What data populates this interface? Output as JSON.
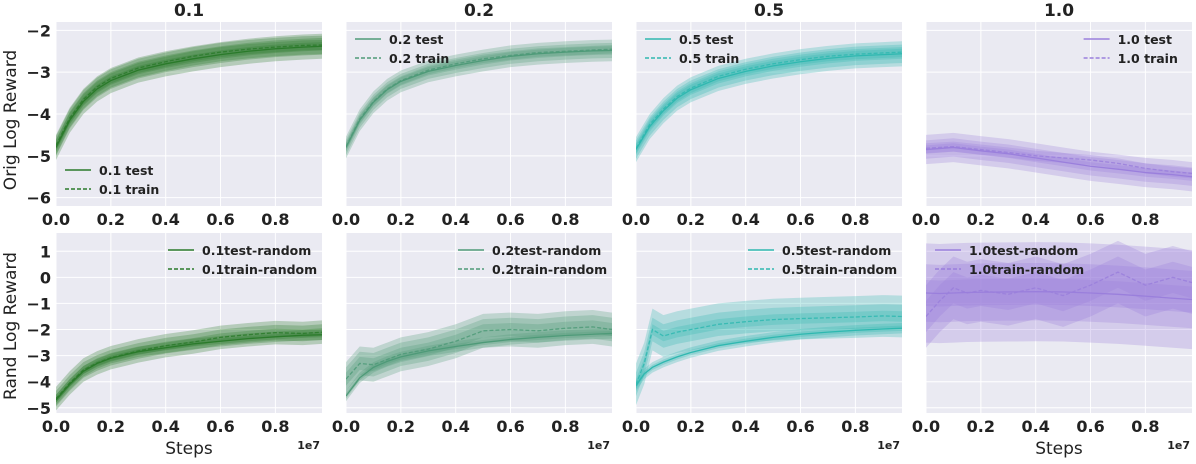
{
  "figure": {
    "column_titles": [
      "0.1",
      "0.2",
      "0.5",
      "1.0"
    ],
    "row_labels": [
      "Orig Log Reward",
      "Rand Log Reward"
    ],
    "xlabel": "Steps",
    "x_offset_label": "1e7",
    "colors": {
      "c01": "#2a7a2a",
      "c02": "#4e9a78",
      "c05": "#2fb8b0",
      "c10": "#9a7fdc",
      "panel_bg": "#eaeaf2",
      "grid": "#ffffff"
    }
  },
  "chart_data": [
    {
      "type": "line",
      "row": 0,
      "col": 0,
      "title": "0.1",
      "color_key": "c01",
      "xlim": [
        0,
        0.97
      ],
      "ylim": [
        -6.2,
        -1.8
      ],
      "xticks": [
        0.0,
        0.2,
        0.4,
        0.6,
        0.8
      ],
      "xtick_labels": [
        "0.0",
        "0.2",
        "0.4",
        "0.6",
        "0.8"
      ],
      "yticks": [
        -6,
        -5,
        -4,
        -3,
        -2
      ],
      "ytick_labels": [
        "−6",
        "−5",
        "−4",
        "−3",
        "−2"
      ],
      "ylabel": "Orig Log Reward",
      "xlabel": "",
      "legend": {
        "position": "lower-left",
        "entries": [
          "0.1 test",
          "0.1 train"
        ]
      },
      "x": [
        0.0,
        0.05,
        0.1,
        0.15,
        0.2,
        0.3,
        0.4,
        0.5,
        0.6,
        0.7,
        0.8,
        0.9,
        0.97
      ],
      "series": [
        {
          "name": "0.1 test",
          "style": "solid",
          "values": [
            -4.8,
            -4.15,
            -3.7,
            -3.4,
            -3.2,
            -2.95,
            -2.8,
            -2.68,
            -2.58,
            -2.5,
            -2.44,
            -2.4,
            -2.38
          ],
          "bands": [
            0.1,
            0.2,
            0.3
          ]
        },
        {
          "name": "0.1 train",
          "style": "dashed",
          "values": [
            -4.75,
            -4.1,
            -3.65,
            -3.35,
            -3.15,
            -2.9,
            -2.75,
            -2.62,
            -2.52,
            -2.45,
            -2.4,
            -2.36,
            -2.35
          ],
          "bands": [
            0.12,
            0.22
          ]
        }
      ]
    },
    {
      "type": "line",
      "row": 0,
      "col": 1,
      "title": "0.2",
      "color_key": "c02",
      "xlim": [
        0,
        0.97
      ],
      "ylim": [
        -6.2,
        -1.8
      ],
      "xticks": [
        0.0,
        0.2,
        0.4,
        0.6,
        0.8
      ],
      "xtick_labels": [
        "0.0",
        "0.2",
        "0.4",
        "0.6",
        "0.8"
      ],
      "yticks": [
        -6,
        -5,
        -4,
        -3,
        -2
      ],
      "ytick_labels": [],
      "ylabel": "",
      "xlabel": "",
      "legend": {
        "position": "upper-left",
        "entries": [
          "0.2 test",
          "0.2 train"
        ]
      },
      "x": [
        0.0,
        0.05,
        0.1,
        0.15,
        0.2,
        0.3,
        0.4,
        0.5,
        0.6,
        0.7,
        0.8,
        0.9,
        0.97
      ],
      "series": [
        {
          "name": "0.2 test",
          "style": "solid",
          "values": [
            -4.8,
            -4.15,
            -3.72,
            -3.42,
            -3.22,
            -2.98,
            -2.84,
            -2.72,
            -2.62,
            -2.56,
            -2.52,
            -2.49,
            -2.48
          ],
          "bands": [
            0.1,
            0.18,
            0.26
          ]
        },
        {
          "name": "0.2 train",
          "style": "dashed",
          "values": [
            -4.78,
            -4.12,
            -3.7,
            -3.4,
            -3.2,
            -2.95,
            -2.8,
            -2.68,
            -2.6,
            -2.53,
            -2.5,
            -2.47,
            -2.45
          ],
          "bands": [
            0.1
          ]
        }
      ]
    },
    {
      "type": "line",
      "row": 0,
      "col": 2,
      "title": "0.5",
      "color_key": "c05",
      "xlim": [
        0,
        0.97
      ],
      "ylim": [
        -6.2,
        -1.8
      ],
      "xticks": [
        0.0,
        0.2,
        0.4,
        0.6,
        0.8
      ],
      "xtick_labels": [
        "0.0",
        "0.2",
        "0.4",
        "0.6",
        "0.8"
      ],
      "yticks": [
        -6,
        -5,
        -4,
        -3,
        -2
      ],
      "ytick_labels": [],
      "ylabel": "",
      "xlabel": "",
      "legend": {
        "position": "upper-left",
        "entries": [
          "0.5 test",
          "0.5 train"
        ]
      },
      "x": [
        0.0,
        0.05,
        0.1,
        0.15,
        0.2,
        0.3,
        0.4,
        0.5,
        0.6,
        0.7,
        0.8,
        0.9,
        0.97
      ],
      "series": [
        {
          "name": "0.5 test",
          "style": "solid",
          "values": [
            -4.85,
            -4.3,
            -3.92,
            -3.62,
            -3.42,
            -3.15,
            -2.98,
            -2.85,
            -2.75,
            -2.67,
            -2.61,
            -2.58,
            -2.56
          ],
          "bands": [
            0.12,
            0.22,
            0.3
          ]
        },
        {
          "name": "0.5 train",
          "style": "dashed",
          "values": [
            -4.82,
            -4.25,
            -3.88,
            -3.58,
            -3.38,
            -3.1,
            -2.93,
            -2.8,
            -2.7,
            -2.62,
            -2.57,
            -2.54,
            -2.52
          ],
          "bands": [
            0.12
          ]
        }
      ]
    },
    {
      "type": "line",
      "row": 0,
      "col": 3,
      "title": "1.0",
      "color_key": "c10",
      "xlim": [
        0,
        0.97
      ],
      "ylim": [
        -6.2,
        -1.8
      ],
      "xticks": [
        0.0,
        0.2,
        0.4,
        0.6,
        0.8
      ],
      "xtick_labels": [
        "0.0",
        "0.2",
        "0.4",
        "0.6",
        "0.8"
      ],
      "yticks": [
        -6,
        -5,
        -4,
        -3,
        -2
      ],
      "ytick_labels": [],
      "ylabel": "",
      "xlabel": "",
      "legend": {
        "position": "upper-right",
        "entries": [
          "1.0 test",
          "1.0 train"
        ]
      },
      "x": [
        0.0,
        0.1,
        0.2,
        0.3,
        0.4,
        0.5,
        0.6,
        0.7,
        0.8,
        0.9,
        0.97
      ],
      "series": [
        {
          "name": "1.0 test",
          "style": "solid",
          "values": [
            -4.85,
            -4.8,
            -4.88,
            -4.95,
            -5.05,
            -5.15,
            -5.25,
            -5.32,
            -5.4,
            -5.45,
            -5.5
          ],
          "bands": [
            0.1,
            0.22,
            0.35
          ]
        },
        {
          "name": "1.0 train",
          "style": "dashed",
          "values": [
            -4.82,
            -4.78,
            -4.85,
            -4.92,
            -5.0,
            -5.05,
            -5.1,
            -5.18,
            -5.3,
            -5.38,
            -5.42
          ],
          "bands": [
            0.12
          ]
        }
      ]
    },
    {
      "type": "line",
      "row": 1,
      "col": 0,
      "title": "",
      "color_key": "c01",
      "xlim": [
        0,
        0.97
      ],
      "ylim": [
        -5.2,
        1.7
      ],
      "xticks": [
        0.0,
        0.2,
        0.4,
        0.6,
        0.8
      ],
      "xtick_labels": [
        "0.0",
        "0.2",
        "0.4",
        "0.6",
        "0.8"
      ],
      "yticks": [
        -5,
        -4,
        -3,
        -2,
        -1,
        0,
        1
      ],
      "ytick_labels": [
        "−5",
        "−4",
        "−3",
        "−2",
        "−1",
        "0",
        "1"
      ],
      "ylabel": "Rand Log Reward",
      "xlabel": "Steps",
      "x_offset": "1e7",
      "legend": {
        "position": "upper-right",
        "entries": [
          "0.1test-random",
          "0.1train-random"
        ]
      },
      "x": [
        0.0,
        0.05,
        0.1,
        0.15,
        0.2,
        0.3,
        0.4,
        0.5,
        0.6,
        0.7,
        0.8,
        0.9,
        0.97
      ],
      "series": [
        {
          "name": "0.1test-random",
          "style": "solid",
          "values": [
            -4.7,
            -4.1,
            -3.6,
            -3.3,
            -3.1,
            -2.85,
            -2.7,
            -2.55,
            -2.45,
            -2.35,
            -2.28,
            -2.22,
            -2.2
          ],
          "bands": [
            0.1,
            0.2
          ]
        },
        {
          "name": "0.1train-random",
          "style": "dashed",
          "values": [
            -4.65,
            -4.05,
            -3.55,
            -3.28,
            -3.08,
            -2.82,
            -2.62,
            -2.48,
            -2.3,
            -2.2,
            -2.12,
            -2.15,
            -2.1
          ],
          "bands": [
            0.15,
            0.3,
            0.45
          ]
        }
      ]
    },
    {
      "type": "line",
      "row": 1,
      "col": 1,
      "title": "",
      "color_key": "c02",
      "xlim": [
        0,
        0.97
      ],
      "ylim": [
        -5.2,
        1.7
      ],
      "xticks": [
        0.0,
        0.2,
        0.4,
        0.6,
        0.8
      ],
      "xtick_labels": [
        "0.0",
        "0.2",
        "0.4",
        "0.6",
        "0.8"
      ],
      "yticks": [
        -5,
        -4,
        -3,
        -2,
        -1,
        0,
        1
      ],
      "ytick_labels": [],
      "ylabel": "",
      "xlabel": "",
      "x_offset": "1e7",
      "legend": {
        "position": "upper-right",
        "entries": [
          "0.2test-random",
          "0.2train-random"
        ]
      },
      "x": [
        0.0,
        0.05,
        0.1,
        0.15,
        0.2,
        0.3,
        0.4,
        0.5,
        0.6,
        0.7,
        0.8,
        0.9,
        0.97
      ],
      "series": [
        {
          "name": "0.2test-random",
          "style": "solid",
          "values": [
            -4.55,
            -3.85,
            -3.45,
            -3.22,
            -3.05,
            -2.82,
            -2.65,
            -2.5,
            -2.38,
            -2.3,
            -2.23,
            -2.18,
            -2.15
          ],
          "bands": [
            0.1,
            0.2
          ]
        },
        {
          "name": "0.2train-random",
          "style": "dashed",
          "values": [
            -3.9,
            -3.3,
            -3.35,
            -3.15,
            -2.95,
            -2.75,
            -2.45,
            -2.05,
            -2.0,
            -2.05,
            -1.95,
            -1.9,
            -2.0
          ],
          "bands": [
            0.25,
            0.45,
            0.65
          ]
        }
      ]
    },
    {
      "type": "line",
      "row": 1,
      "col": 2,
      "title": "",
      "color_key": "c05",
      "xlim": [
        0,
        0.97
      ],
      "ylim": [
        -5.2,
        1.7
      ],
      "xticks": [
        0.0,
        0.2,
        0.4,
        0.6,
        0.8
      ],
      "xtick_labels": [
        "0.0",
        "0.2",
        "0.4",
        "0.6",
        "0.8"
      ],
      "yticks": [
        -5,
        -4,
        -3,
        -2,
        -1,
        0,
        1
      ],
      "ytick_labels": [],
      "ylabel": "",
      "xlabel": "",
      "x_offset": "1e7",
      "legend": {
        "position": "upper-right",
        "entries": [
          "0.5test-random",
          "0.5train-random"
        ]
      },
      "x": [
        0.0,
        0.03,
        0.06,
        0.1,
        0.15,
        0.2,
        0.3,
        0.4,
        0.5,
        0.6,
        0.7,
        0.8,
        0.9,
        0.97
      ],
      "series": [
        {
          "name": "0.5test-random",
          "style": "solid",
          "values": [
            -4.15,
            -3.7,
            -3.45,
            -3.25,
            -3.05,
            -2.88,
            -2.62,
            -2.45,
            -2.3,
            -2.18,
            -2.1,
            -2.03,
            -1.98,
            -1.95
          ],
          "bands": [
            0.1,
            0.2
          ]
        },
        {
          "name": "0.5train-random",
          "style": "dashed",
          "values": [
            -4.1,
            -3.3,
            -2.0,
            -2.25,
            -2.1,
            -2.0,
            -1.8,
            -1.7,
            -1.62,
            -1.58,
            -1.55,
            -1.52,
            -1.48,
            -1.5
          ],
          "bands": [
            0.2,
            0.45,
            0.8
          ]
        }
      ]
    },
    {
      "type": "line",
      "row": 1,
      "col": 3,
      "title": "",
      "color_key": "c10",
      "xlim": [
        0,
        0.97
      ],
      "ylim": [
        -5.2,
        1.7
      ],
      "xticks": [
        0.0,
        0.2,
        0.4,
        0.6,
        0.8
      ],
      "xtick_labels": [
        "0.0",
        "0.2",
        "0.4",
        "0.6",
        "0.8"
      ],
      "yticks": [
        -5,
        -4,
        -3,
        -2,
        -1,
        0,
        1
      ],
      "ytick_labels": [],
      "ylabel": "",
      "xlabel": "Steps",
      "x_offset": "1e7",
      "legend": {
        "position": "upper-left",
        "entries": [
          "1.0test-random",
          "1.0train-random"
        ]
      },
      "x": [
        0.0,
        0.05,
        0.1,
        0.15,
        0.2,
        0.3,
        0.4,
        0.5,
        0.6,
        0.7,
        0.8,
        0.9,
        0.97
      ],
      "series": [
        {
          "name": "1.0test-random",
          "style": "solid",
          "values": [
            -0.6,
            -0.62,
            -0.6,
            -0.58,
            -0.57,
            -0.56,
            -0.55,
            -0.56,
            -0.6,
            -0.65,
            -0.72,
            -0.8,
            -0.85
          ],
          "bands": [
            0.5,
            1.1,
            1.9
          ]
        },
        {
          "name": "1.0train-random",
          "style": "dashed",
          "values": [
            -1.5,
            -0.9,
            -0.4,
            -0.6,
            -0.5,
            -0.65,
            -0.4,
            -0.7,
            -0.3,
            0.2,
            -0.3,
            0.0,
            -0.2
          ],
          "bands": [
            0.6,
            1.2
          ]
        }
      ]
    }
  ]
}
